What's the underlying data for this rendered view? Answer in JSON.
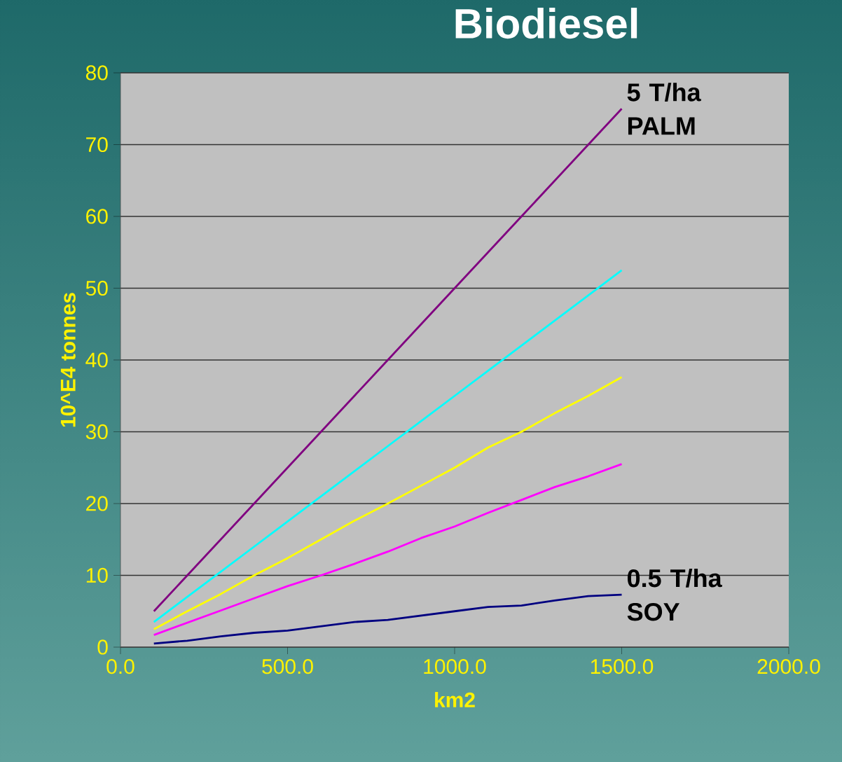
{
  "chart_data": {
    "type": "line",
    "title": "Biodiesel",
    "xlabel": "km2",
    "ylabel": "10^E4 tonnes",
    "x": [
      100,
      200,
      300,
      400,
      500,
      600,
      700,
      800,
      900,
      1000,
      1100,
      1200,
      1300,
      1400,
      1500
    ],
    "series": [
      {
        "color": "#800080",
        "values": [
          5,
          10,
          15,
          20,
          25,
          30,
          35,
          40,
          45,
          50,
          55,
          60,
          65,
          70,
          75
        ]
      },
      {
        "color": "#00ffff",
        "values": [
          3.5,
          7,
          10.5,
          14,
          17.5,
          21,
          24.5,
          28,
          31.5,
          35,
          38.5,
          42,
          45.5,
          49,
          52.5
        ]
      },
      {
        "color": "#ffff00",
        "values": [
          2.5,
          5,
          7.4,
          10,
          12.4,
          15,
          17.6,
          20,
          22.5,
          25,
          27.8,
          30,
          32.6,
          35,
          37.6
        ]
      },
      {
        "color": "#ff00ff",
        "values": [
          1.7,
          3.4,
          5.1,
          6.8,
          8.5,
          10,
          11.6,
          13.3,
          15.2,
          16.8,
          18.7,
          20.5,
          22.3,
          23.8,
          25.5
        ]
      },
      {
        "color": "#000080",
        "values": [
          0.5,
          0.9,
          1.5,
          2,
          2.3,
          2.9,
          3.5,
          3.8,
          4.4,
          5,
          5.6,
          5.8,
          6.5,
          7.1,
          7.3
        ]
      }
    ],
    "xlim": [
      0,
      2000
    ],
    "xticks": [
      {
        "value": 0,
        "label": "0.0"
      },
      {
        "value": 500,
        "label": "500.0"
      },
      {
        "value": 1000,
        "label": "1000.0"
      },
      {
        "value": 1500,
        "label": "1500.0"
      },
      {
        "value": 2000,
        "label": "2000.0"
      }
    ],
    "ylim": [
      0,
      80
    ],
    "yticks": [
      0,
      10,
      20,
      30,
      40,
      50,
      60,
      70,
      80
    ],
    "grid": "y",
    "annotations": [
      {
        "text": "5 T/ha PALM",
        "x": 1500,
        "y": 75
      },
      {
        "text": "0.5 T/ha SOY",
        "x": 1500,
        "y": 7.3
      }
    ]
  }
}
